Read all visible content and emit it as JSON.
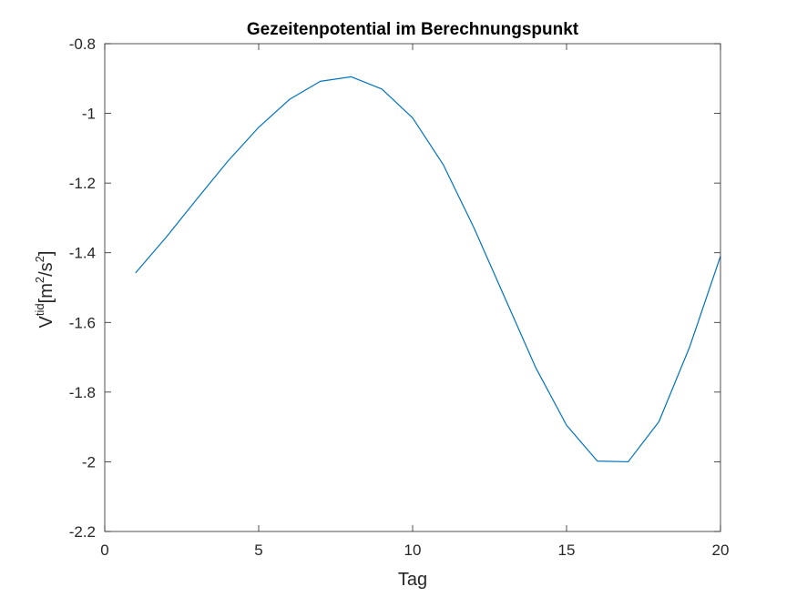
{
  "chart_data": {
    "type": "line",
    "title": "Gezeitenpotential im Berechnungspunkt",
    "xlabel": "Tag",
    "ylabel": {
      "base": "V",
      "superscript": "tid",
      "unit_open": "[m",
      "unit_sup1": "2",
      "unit_mid": "/s",
      "unit_sup2": "2",
      "unit_close": "]"
    },
    "xlim": [
      0,
      20
    ],
    "ylim": [
      -2.2,
      -0.8
    ],
    "xticks": [
      0,
      5,
      10,
      15,
      20
    ],
    "xtick_labels": [
      "0",
      "5",
      "10",
      "15",
      "20"
    ],
    "yticks": [
      -2.2,
      -2.0,
      -1.8,
      -1.6,
      -1.4,
      -1.2,
      -1.0,
      -0.8
    ],
    "ytick_labels": [
      "-2.2",
      "-2",
      "-1.8",
      "-1.6",
      "-1.4",
      "-1.2",
      "-1",
      "-0.8"
    ],
    "grid": false,
    "series": [
      {
        "color": "#0072bd",
        "x": [
          1,
          2,
          3,
          4,
          5,
          6,
          7,
          8,
          9,
          10,
          11,
          12,
          13,
          14,
          15,
          16,
          17,
          18,
          19,
          20
        ],
        "y": [
          -1.458,
          -1.355,
          -1.245,
          -1.137,
          -1.04,
          -0.96,
          -0.908,
          -0.895,
          -0.93,
          -1.013,
          -1.148,
          -1.33,
          -1.53,
          -1.73,
          -1.895,
          -1.998,
          -2.0,
          -1.885,
          -1.67,
          -1.41
        ]
      }
    ]
  }
}
